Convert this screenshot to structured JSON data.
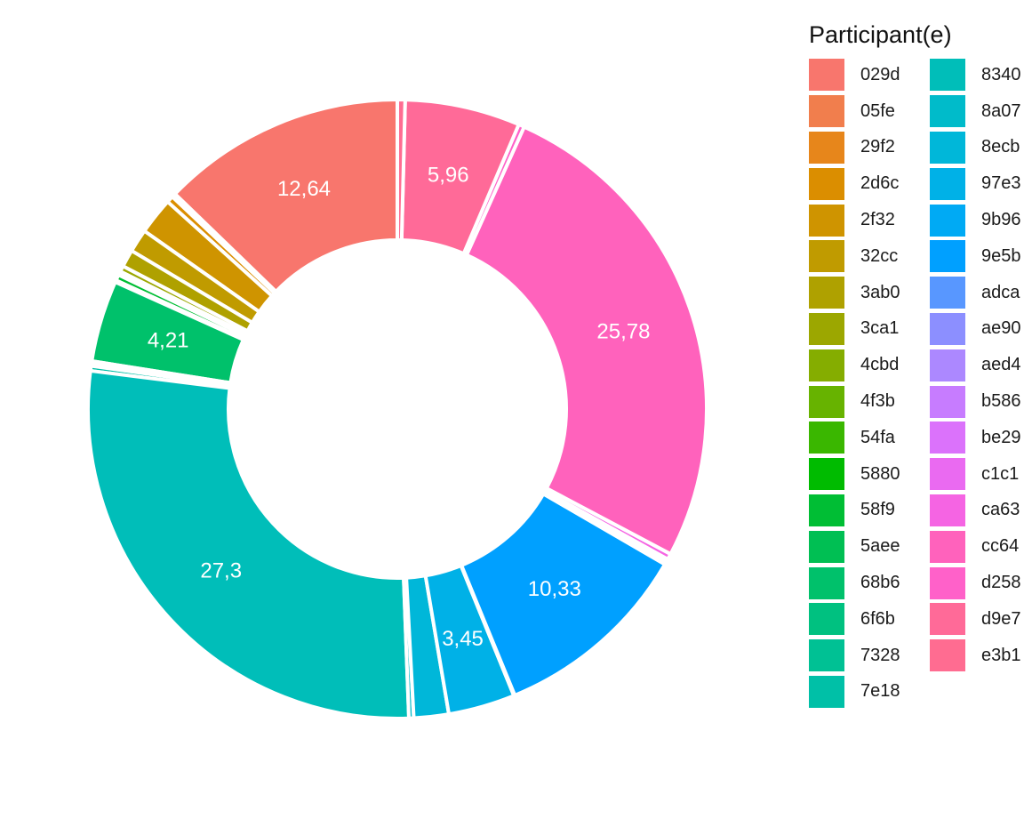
{
  "chart_data": {
    "type": "pie",
    "donut": true,
    "legend": {
      "title": "Participant(e)",
      "placement": "right",
      "columns": 2
    },
    "slices": [
      {
        "name": "029d",
        "value": 12.64,
        "color": "#F8766D",
        "label": "12,64"
      },
      {
        "name": "05fe",
        "value": 0.1,
        "color": "#F17E4D",
        "label": ""
      },
      {
        "name": "29f2",
        "value": 0.1,
        "color": "#E7861B",
        "label": ""
      },
      {
        "name": "2d6c",
        "value": 0.35,
        "color": "#DB8E00",
        "label": ""
      },
      {
        "name": "2f32",
        "value": 1.9,
        "color": "#CF9400",
        "label": ""
      },
      {
        "name": "32cc",
        "value": 1.2,
        "color": "#C09B00",
        "label": ""
      },
      {
        "name": "3ab0",
        "value": 0.9,
        "color": "#AFA100",
        "label": ""
      },
      {
        "name": "3ca1",
        "value": 0.3,
        "color": "#9CA700",
        "label": ""
      },
      {
        "name": "4cbd",
        "value": 0.05,
        "color": "#85AD00",
        "label": ""
      },
      {
        "name": "4f3b",
        "value": 0.05,
        "color": "#67B300",
        "label": ""
      },
      {
        "name": "54fa",
        "value": 0.05,
        "color": "#3AB700",
        "label": ""
      },
      {
        "name": "5880",
        "value": 0.05,
        "color": "#00BB00",
        "label": ""
      },
      {
        "name": "58f9",
        "value": 0.3,
        "color": "#00BE34",
        "label": ""
      },
      {
        "name": "5aee",
        "value": 0.1,
        "color": "#00BF53",
        "label": ""
      },
      {
        "name": "68b6",
        "value": 4.21,
        "color": "#00C16B",
        "label": "4,21"
      },
      {
        "name": "6f6b",
        "value": 0.15,
        "color": "#00C180",
        "label": ""
      },
      {
        "name": "7328",
        "value": 0.1,
        "color": "#00C194",
        "label": ""
      },
      {
        "name": "7e18",
        "value": 0.25,
        "color": "#00C0A7",
        "label": ""
      },
      {
        "name": "8340",
        "value": 27.3,
        "color": "#00BEB9",
        "label": "27,3"
      },
      {
        "name": "8a07",
        "value": 0.25,
        "color": "#00BBCA",
        "label": ""
      },
      {
        "name": "8ecb",
        "value": 1.8,
        "color": "#00B7D9",
        "label": ""
      },
      {
        "name": "97e3",
        "value": 3.45,
        "color": "#00B1E7",
        "label": "3,45"
      },
      {
        "name": "9b96",
        "value": 0.05,
        "color": "#00AAF4",
        "label": ""
      },
      {
        "name": "9e5b",
        "value": 10.33,
        "color": "#00A0FF",
        "label": "10,33"
      },
      {
        "name": "adca",
        "value": 0.05,
        "color": "#5897FF",
        "label": ""
      },
      {
        "name": "ae90",
        "value": 0.05,
        "color": "#8C8FFF",
        "label": ""
      },
      {
        "name": "aed4",
        "value": 0.05,
        "color": "#AC88FF",
        "label": ""
      },
      {
        "name": "b586",
        "value": 0.05,
        "color": "#C77CFF",
        "label": ""
      },
      {
        "name": "be29",
        "value": 0.05,
        "color": "#DB72FB",
        "label": ""
      },
      {
        "name": "c1c1",
        "value": 0.05,
        "color": "#EA6AF1",
        "label": ""
      },
      {
        "name": "ca63",
        "value": 0.3,
        "color": "#F564E3",
        "label": ""
      },
      {
        "name": "cc64",
        "value": 25.78,
        "color": "#FF62BC",
        "label": "25,78"
      },
      {
        "name": "d258",
        "value": 0.3,
        "color": "#FF61C9",
        "label": ""
      },
      {
        "name": "d9e7",
        "value": 5.96,
        "color": "#FF6A98",
        "label": "5,96"
      },
      {
        "name": "e3b1",
        "value": 0.4,
        "color": "#FF6C91",
        "label": ""
      }
    ]
  }
}
